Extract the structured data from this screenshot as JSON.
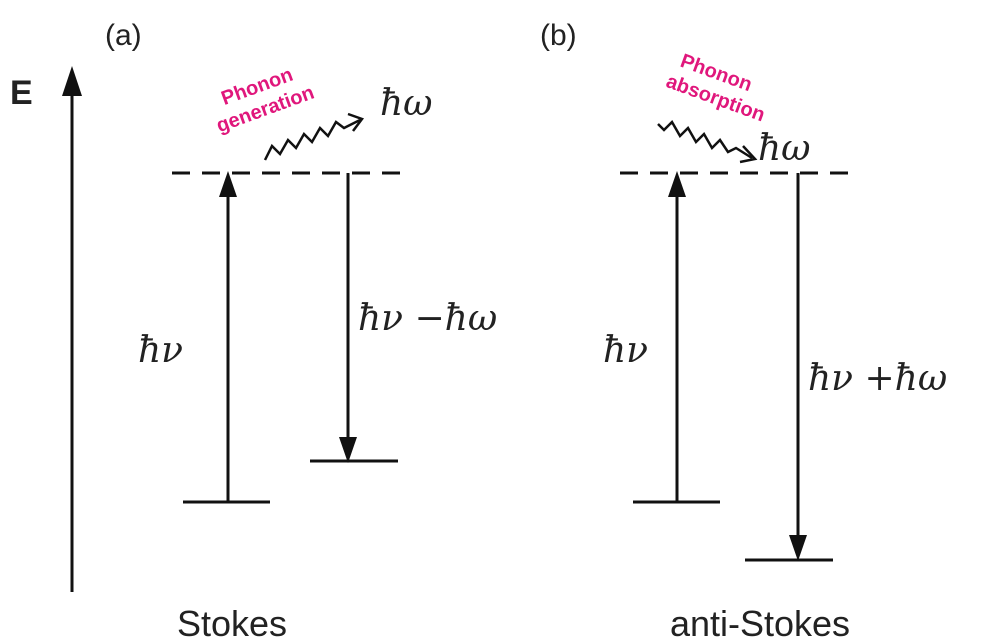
{
  "axis_label": "E",
  "panels": [
    {
      "tag": "(a)",
      "caption": "Stokes",
      "phonon_line1": "Phonon",
      "phonon_line2": "generation",
      "phonon_symbol": "ħω",
      "up_label": "ħν",
      "down_label": "ħν −ħω"
    },
    {
      "tag": "(b)",
      "caption": "anti-Stokes",
      "phonon_line1": "Phonon",
      "phonon_line2": "absorption",
      "phonon_symbol": "ħω",
      "up_label": "ħν",
      "down_label": "ħν +ħω"
    }
  ]
}
